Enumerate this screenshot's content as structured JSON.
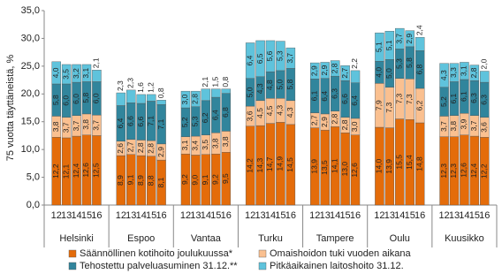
{
  "chart_data": {
    "type": "stacked-bar",
    "y_label": "75 vuotta täyttäneistä, %",
    "groups": [
      "Helsinki",
      "Espoo",
      "Vantaa",
      "Turku",
      "Tampere",
      "Oulu",
      "Kuusikko"
    ],
    "categories": [
      "12",
      "13",
      "14",
      "15",
      "16",
      "12",
      "13",
      "14",
      "15",
      "16",
      "12",
      "13",
      "14",
      "15",
      "16",
      "12",
      "13",
      "14",
      "15",
      "16",
      "12",
      "13",
      "14",
      "15",
      "16",
      "12",
      "13",
      "14",
      "15",
      "16",
      "12",
      "13",
      "14",
      "15",
      "16"
    ],
    "ylim": [
      0,
      35
    ],
    "yticks": [
      {
        "value": 0,
        "label": "0,0"
      },
      {
        "value": 5,
        "label": "5,0"
      },
      {
        "value": 10,
        "label": "10,0"
      },
      {
        "value": 15,
        "label": "15,0"
      },
      {
        "value": 20,
        "label": "20,0"
      },
      {
        "value": 25,
        "label": "25,0"
      },
      {
        "value": 30,
        "label": "30,0"
      },
      {
        "value": 35,
        "label": "35,0"
      }
    ],
    "grid": false,
    "legend": "bottom",
    "series": [
      {
        "name": "Säännöllinen kotihoito joulukuussa*",
        "color": "#e46c0a",
        "values": [
          12.2,
          12.1,
          12.4,
          12.6,
          12.5,
          8.9,
          9.1,
          8.9,
          8.8,
          8.1,
          9.2,
          9.0,
          9.1,
          9.2,
          9.5,
          14.2,
          14.3,
          14.7,
          14.9,
          14.5,
          13.9,
          13.5,
          14.1,
          13.0,
          12.6,
          14.0,
          13.9,
          15.5,
          15.4,
          14.8,
          12.3,
          12.3,
          12.6,
          12.4,
          12.2
        ],
        "value_labels": [
          "12,2",
          "12,1",
          "12,4",
          "12,6",
          "12,5",
          "8,9",
          "9,1",
          "8,9",
          "8,8",
          "8,1",
          "9,2",
          "9,0",
          "9,1",
          "9,2",
          "9,5",
          "14,2",
          "14,3",
          "14,7",
          "14,9",
          "14,5",
          "13,9",
          "13,5",
          "14,1",
          "13,0",
          "12,6",
          "14,0",
          "13,9",
          "15,5",
          "15,4",
          "14,8",
          "12,3",
          "12,3",
          "12,6",
          "12,4",
          "12,2"
        ]
      },
      {
        "name": "Omaishoidon tuki vuoden aikana",
        "color": "#fac090",
        "values": [
          3.8,
          3.7,
          3.7,
          3.8,
          3.7,
          2.6,
          2.7,
          2.8,
          2.8,
          2.9,
          3.1,
          3.4,
          3.5,
          3.8,
          3.8,
          3.6,
          4.5,
          4.5,
          4.3,
          4.3,
          2.7,
          2.9,
          2.8,
          2.8,
          3.0,
          7.9,
          7.3,
          7.3,
          7.3,
          6.2,
          3.7,
          3.8,
          3.9,
          3.7,
          3.6
        ],
        "value_labels": [
          "3,8",
          "3,7",
          "3,7",
          "3,8",
          "3,7",
          "2,6",
          "2,7",
          "2,8",
          "2,8",
          "2,9",
          "3,1",
          "3,4",
          "3,5",
          "3,8",
          "3,8",
          "3,6",
          "4,5",
          "4,5",
          "4,3",
          "4,3",
          "2,7",
          "2,9",
          "2,8",
          "2,8",
          "3,0",
          "7,9",
          "7,3",
          "7,3",
          "7,3",
          "6,2",
          "3,7",
          "3,8",
          "3,9",
          "3,7",
          "3,6"
        ]
      },
      {
        "name": "Tehostettu palveluasuminen 31.12.**",
        "color": "#31859c",
        "values": [
          5.8,
          6.0,
          6.0,
          5.8,
          6.0,
          6.4,
          6.6,
          6.6,
          7.1,
          7.1,
          5.2,
          5.3,
          6.2,
          6.4,
          6.8,
          5.0,
          4.3,
          4.8,
          5.0,
          5.8,
          6.1,
          6.4,
          6.3,
          6.6,
          6.4,
          4.0,
          5.0,
          5.3,
          5.8,
          6.8,
          5.2,
          6.1,
          6.1,
          6.3,
          6.3
        ],
        "value_labels": [
          "5,8",
          "6,0",
          "6,0",
          "5,8",
          "6,0",
          "6,4",
          "6,6",
          "6,6",
          "7,1",
          "7,1",
          "5,2",
          "5,3",
          "6,2",
          "6,4",
          "6,8",
          "5,0",
          "4,3",
          "4,8",
          "5,0",
          "5,8",
          "6,1",
          "6,4",
          "6,3",
          "6,6",
          "6,4",
          "4,0",
          "5,0",
          "5,3",
          "5,8",
          "6,8",
          "5,2",
          "6,1",
          "6,1",
          "6,3",
          "6,3"
        ]
      },
      {
        "name": "Pitkäaikainen laitoshoito 31.12.",
        "color": "#5fc3dc",
        "values": [
          4.0,
          3.5,
          3.2,
          3.1,
          2.1,
          2.3,
          2.3,
          1.6,
          1.2,
          0.8,
          3.0,
          2.8,
          2.1,
          1.5,
          0.8,
          6.4,
          6.5,
          5.6,
          5.3,
          3.7,
          2.9,
          2.9,
          2.8,
          2.7,
          2.2,
          5.1,
          5.1,
          3.7,
          2.9,
          2.4,
          4.3,
          3.3,
          3.1,
          2.8,
          2.0
        ],
        "value_labels": [
          "4,0",
          "3,5",
          "3,2",
          "3,1",
          "2,1",
          "2,3",
          "2,3",
          "1,6",
          "1,2",
          "0,8",
          "3,0",
          "2,8",
          "2,1",
          "1,5",
          "0,8",
          "6,4",
          "6,5",
          "5,6",
          "5,3",
          "3,7",
          "2,9",
          "2,9",
          "2,8",
          "2,7",
          "2,2",
          "5,1",
          "5,1",
          "3,7",
          "2,9",
          "2,4",
          "4,3",
          "3,3",
          "3,1",
          "2,8",
          "2,0"
        ]
      }
    ]
  }
}
